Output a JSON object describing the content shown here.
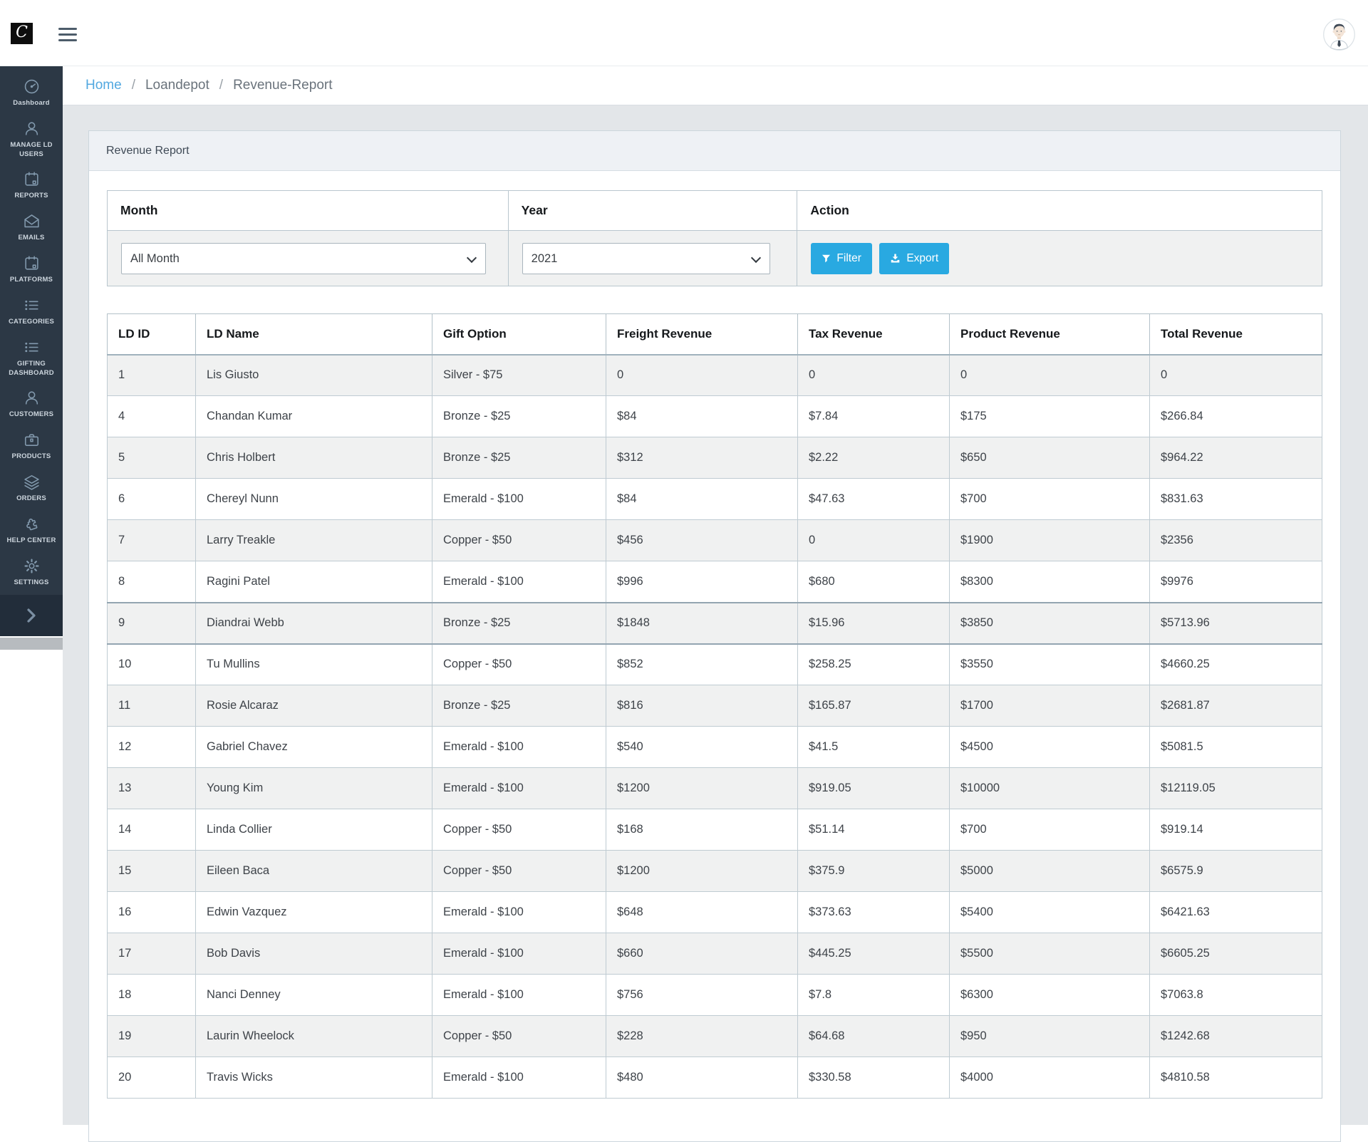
{
  "topbar": {
    "logo_letter": "C"
  },
  "sidebar": {
    "items": [
      {
        "id": "dashboard",
        "label": "Dashboard",
        "icon": "gauge-icon"
      },
      {
        "id": "manage-ld-users",
        "label": "MANAGE LD USERS",
        "icon": "user-icon"
      },
      {
        "id": "reports",
        "label": "REPORTS",
        "icon": "calendar-icon"
      },
      {
        "id": "emails",
        "label": "EMAILS",
        "icon": "mail-open-icon"
      },
      {
        "id": "platforms",
        "label": "PLATFORMS",
        "icon": "calendar-icon"
      },
      {
        "id": "categories",
        "label": "CATEGORIES",
        "icon": "list-icon"
      },
      {
        "id": "gifting-dashboard",
        "label": "GIFTING DASHBOARD",
        "icon": "list-icon"
      },
      {
        "id": "customers",
        "label": "CUSTOMERS",
        "icon": "user-icon"
      },
      {
        "id": "products",
        "label": "PRODUCTS",
        "icon": "briefcase-icon"
      },
      {
        "id": "orders",
        "label": "ORDERS",
        "icon": "layers-icon"
      },
      {
        "id": "help-center",
        "label": "HELP CENTER",
        "icon": "puzzle-icon"
      },
      {
        "id": "settings",
        "label": "SETTINGS",
        "icon": "gear-icon"
      }
    ]
  },
  "breadcrumb": {
    "separator": "/",
    "items": [
      {
        "label": "Home",
        "link": true
      },
      {
        "label": "Loandepot",
        "link": false
      },
      {
        "label": "Revenue-Report",
        "link": false
      }
    ]
  },
  "card": {
    "title": "Revenue Report"
  },
  "filters": {
    "month": {
      "label": "Month",
      "selected": "All Month"
    },
    "year": {
      "label": "Year",
      "selected": "2021"
    },
    "action": {
      "label": "Action",
      "filter_label": "Filter",
      "export_label": "Export"
    }
  },
  "table": {
    "columns": [
      "LD ID",
      "LD Name",
      "Gift Option",
      "Freight Revenue",
      "Tax Revenue",
      "Product Revenue",
      "Total Revenue"
    ],
    "rows": [
      [
        "1",
        "Lis Giusto",
        "Silver - $75",
        "0",
        "0",
        "0",
        "0"
      ],
      [
        "4",
        "Chandan Kumar",
        "Bronze - $25",
        "$84",
        "$7.84",
        "$175",
        "$266.84"
      ],
      [
        "5",
        "Chris Holbert",
        "Bronze - $25",
        "$312",
        "$2.22",
        "$650",
        "$964.22"
      ],
      [
        "6",
        "Chereyl Nunn",
        "Emerald - $100",
        "$84",
        "$47.63",
        "$700",
        "$831.63"
      ],
      [
        "7",
        "Larry Treakle",
        "Copper - $50",
        "$456",
        "0",
        "$1900",
        "$2356"
      ],
      [
        "8",
        "Ragini Patel",
        "Emerald - $100",
        "$996",
        "$680",
        "$8300",
        "$9976"
      ],
      [
        "9",
        "Diandrai Webb",
        "Bronze - $25",
        "$1848",
        "$15.96",
        "$3850",
        "$5713.96"
      ],
      [
        "10",
        "Tu Mullins",
        "Copper - $50",
        "$852",
        "$258.25",
        "$3550",
        "$4660.25"
      ],
      [
        "11",
        "Rosie Alcaraz",
        "Bronze - $25",
        "$816",
        "$165.87",
        "$1700",
        "$2681.87"
      ],
      [
        "12",
        "Gabriel Chavez",
        "Emerald - $100",
        "$540",
        "$41.5",
        "$4500",
        "$5081.5"
      ],
      [
        "13",
        "Young Kim",
        "Emerald - $100",
        "$1200",
        "$919.05",
        "$10000",
        "$12119.05"
      ],
      [
        "14",
        "Linda Collier",
        "Copper - $50",
        "$168",
        "$51.14",
        "$700",
        "$919.14"
      ],
      [
        "15",
        "Eileen Baca",
        "Copper - $50",
        "$1200",
        "$375.9",
        "$5000",
        "$6575.9"
      ],
      [
        "16",
        "Edwin Vazquez",
        "Emerald - $100",
        "$648",
        "$373.63",
        "$5400",
        "$6421.63"
      ],
      [
        "17",
        "Bob Davis",
        "Emerald - $100",
        "$660",
        "$445.25",
        "$5500",
        "$6605.25"
      ],
      [
        "18",
        "Nanci Denney",
        "Emerald - $100",
        "$756",
        "$7.8",
        "$6300",
        "$7063.8"
      ],
      [
        "19",
        "Laurin Wheelock",
        "Copper - $50",
        "$228",
        "$64.68",
        "$950",
        "$1242.68"
      ],
      [
        "20",
        "Travis Wicks",
        "Emerald - $100",
        "$480",
        "$330.58",
        "$4000",
        "$4810.58"
      ]
    ],
    "highlighted_row_index": 6
  },
  "colors": {
    "accent": "#29a9e1",
    "sidebar_bg": "#2c3845",
    "breadcrumb_link": "#52a8e0",
    "row_stripe": "#f0f1f1",
    "page_bg": "#e3e6e9"
  }
}
